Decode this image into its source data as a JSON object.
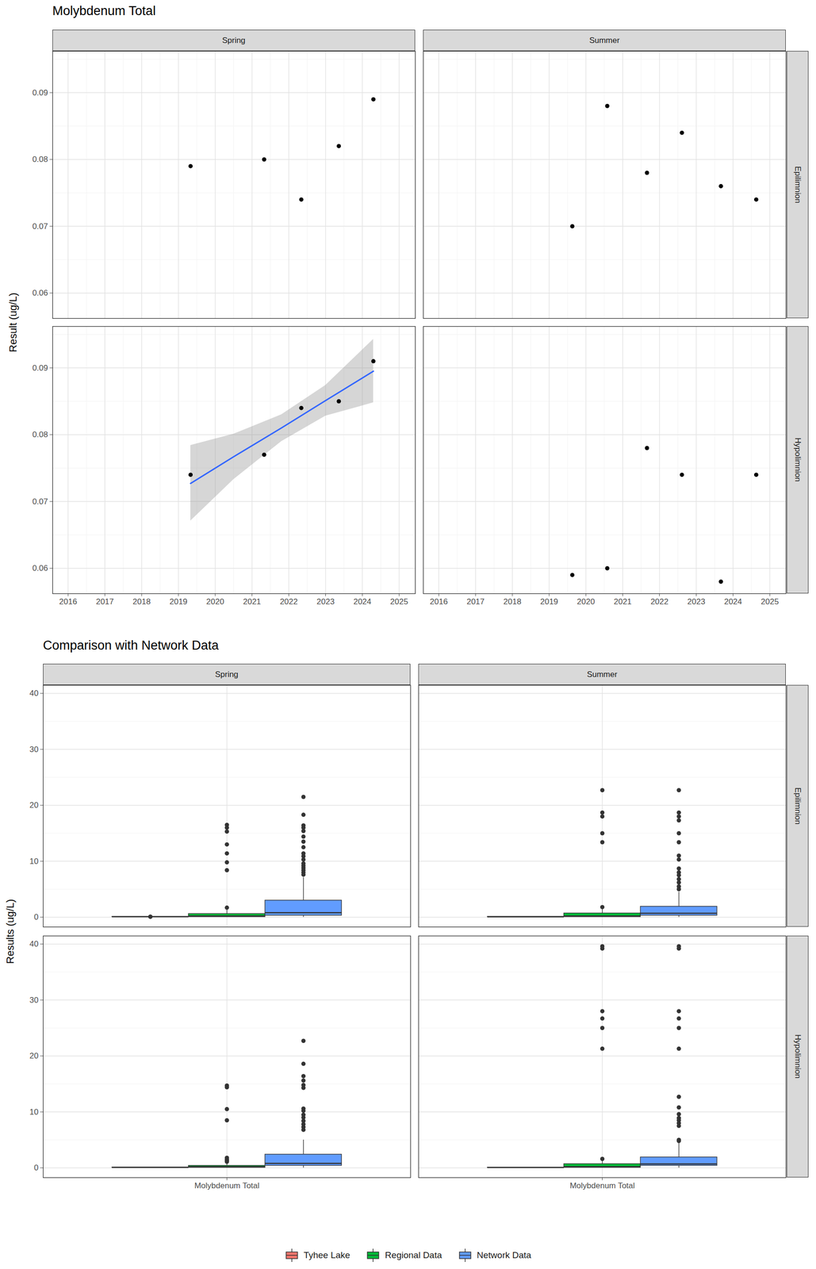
{
  "chart_data": [
    {
      "type": "scatter",
      "title": "Molybdenum Total",
      "y_label": "Result (ug/L)",
      "grid": true,
      "columns": [
        "Spring",
        "Summer"
      ],
      "rows": [
        "Epilimnion",
        "Hypolimnion"
      ],
      "xlim": [
        2015.58,
        2025.44
      ],
      "xticks": [
        2016,
        2017,
        2018,
        2019,
        2020,
        2021,
        2022,
        2023,
        2024,
        2025
      ],
      "ylim": [
        0.0562,
        0.0962
      ],
      "yticks": [
        0.06,
        0.07,
        0.08,
        0.09
      ],
      "color": "#000000",
      "panels": [
        {
          "column": "Spring",
          "row": "Epilimnion",
          "x": [
            2019.33,
            2021.33,
            2022.34,
            2023.36,
            2024.3
          ],
          "values": [
            0.079,
            0.08,
            0.074,
            0.082,
            0.089
          ]
        },
        {
          "column": "Summer",
          "row": "Epilimnion",
          "x": [
            2019.63,
            2020.58,
            2021.66,
            2022.61,
            2023.67,
            2024.63
          ],
          "values": [
            0.07,
            0.088,
            0.078,
            0.084,
            0.076,
            0.074
          ]
        },
        {
          "column": "Spring",
          "row": "Hypolimnion",
          "x": [
            2019.33,
            2021.33,
            2022.34,
            2023.36,
            2024.3
          ],
          "values": [
            0.074,
            0.077,
            0.084,
            0.085,
            0.091
          ],
          "fit": {
            "type": "line",
            "color": "#3366FF",
            "x": [
              2019.33,
              2020.5,
              2021.8,
              2023.0,
              2024.3
            ],
            "values": [
              0.0727,
              0.0767,
              0.081,
              0.0851,
              0.0895
            ],
            "lower": [
              0.0671,
              0.0733,
              0.079,
              0.0828,
              0.0848
            ],
            "upper": [
              0.0784,
              0.0801,
              0.083,
              0.0874,
              0.0943
            ]
          }
        },
        {
          "column": "Summer",
          "row": "Hypolimnion",
          "x": [
            2019.63,
            2020.58,
            2021.66,
            2022.61,
            2023.67,
            2024.63
          ],
          "values": [
            0.059,
            0.06,
            0.078,
            0.074,
            0.058,
            0.074
          ]
        }
      ]
    },
    {
      "type": "box",
      "title": "Comparison with Network Data",
      "y_label": "Results (ug/L)",
      "grid": true,
      "legend": "bottom",
      "columns": [
        "Spring",
        "Summer"
      ],
      "rows": [
        "Epilimnion",
        "Hypolimnion"
      ],
      "categories": [
        "Molybdenum Total"
      ],
      "ylim": [
        -1.75,
        41.45
      ],
      "yticks": [
        0,
        10,
        20,
        30,
        40
      ],
      "series": [
        {
          "name": "Tyhee Lake",
          "color": "#F8766D"
        },
        {
          "name": "Regional Data",
          "color": "#00BA38"
        },
        {
          "name": "Network Data",
          "color": "#619CFF"
        }
      ],
      "panels": [
        {
          "column": "Spring",
          "row": "Epilimnion",
          "boxes": [
            {
              "whisker_low": 0.079,
              "q1": 0.079,
              "median": 0.08,
              "q3": 0.082,
              "whisker_high": 0.082,
              "outliers": [
                0.074,
                0.089
              ]
            },
            {
              "whisker_low": 0,
              "q1": 0.05,
              "median": 0.2,
              "q3": 0.6,
              "whisker_high": 1.3,
              "outliers": [
                16.5,
                16.0,
                15.3,
                13.0,
                11.4,
                9.8,
                8.4,
                1.7
              ]
            },
            {
              "whisker_low": 0,
              "q1": 0.3,
              "median": 0.8,
              "q3": 3.0,
              "whisker_high": 7.1,
              "outliers": [
                21.5,
                18.3,
                16.4,
                16.0,
                15.4,
                14.4,
                13.5,
                12.5,
                11.4,
                10.9,
                10.3,
                9.6,
                9.2,
                8.8,
                8.4,
                8.0,
                7.6
              ]
            }
          ]
        },
        {
          "column": "Summer",
          "row": "Epilimnion",
          "boxes": [
            {
              "whisker_low": 0.07,
              "q1": 0.0745,
              "median": 0.077,
              "q3": 0.0825,
              "whisker_high": 0.088,
              "outliers": []
            },
            {
              "whisker_low": 0,
              "q1": 0.05,
              "median": 0.2,
              "q3": 0.7,
              "whisker_high": 1.5,
              "outliers": [
                22.7,
                18.7,
                18.0,
                15.0,
                13.4,
                1.8
              ]
            },
            {
              "whisker_low": 0,
              "q1": 0.3,
              "median": 0.7,
              "q3": 1.9,
              "whisker_high": 4.5,
              "outliers": [
                22.7,
                18.7,
                18.0,
                17.3,
                15.0,
                13.4,
                11.0,
                10.3,
                8.7,
                8.0,
                7.5,
                6.8,
                6.2,
                5.5,
                5.0
              ]
            }
          ]
        },
        {
          "column": "Spring",
          "row": "Hypolimnion",
          "boxes": [
            {
              "whisker_low": 0.074,
              "q1": 0.077,
              "median": 0.084,
              "q3": 0.085,
              "whisker_high": 0.091,
              "outliers": []
            },
            {
              "whisker_low": 0,
              "q1": 0.05,
              "median": 0.2,
              "q3": 0.4,
              "whisker_high": 0.9,
              "outliers": [
                14.7,
                14.4,
                10.5,
                8.5,
                1.8,
                1.5,
                1.3,
                1.1
              ]
            },
            {
              "whisker_low": 0,
              "q1": 0.4,
              "median": 0.8,
              "q3": 2.4,
              "whisker_high": 5.0,
              "outliers": [
                22.7,
                18.6,
                16.4,
                15.6,
                14.8,
                14.3,
                10.6,
                10.2,
                9.5,
                9.0,
                8.4,
                7.8,
                7.3,
                6.8
              ]
            }
          ]
        },
        {
          "column": "Summer",
          "row": "Hypolimnion",
          "boxes": [
            {
              "whisker_low": 0.058,
              "q1": 0.05925,
              "median": 0.067,
              "q3": 0.074,
              "whisker_high": 0.078,
              "outliers": []
            },
            {
              "whisker_low": 0,
              "q1": 0.05,
              "median": 0.2,
              "q3": 0.7,
              "whisker_high": 1.5,
              "outliers": [
                39.6,
                39.2,
                28.0,
                26.7,
                25.0,
                21.3,
                1.6
              ]
            },
            {
              "whisker_low": 0,
              "q1": 0.4,
              "median": 0.7,
              "q3": 1.9,
              "whisker_high": 4.6,
              "outliers": [
                39.6,
                39.2,
                28.0,
                26.7,
                25.0,
                21.3,
                12.7,
                10.8,
                9.6,
                8.9,
                8.5,
                8.0,
                7.5,
                5.0,
                4.8
              ]
            }
          ]
        }
      ]
    }
  ]
}
